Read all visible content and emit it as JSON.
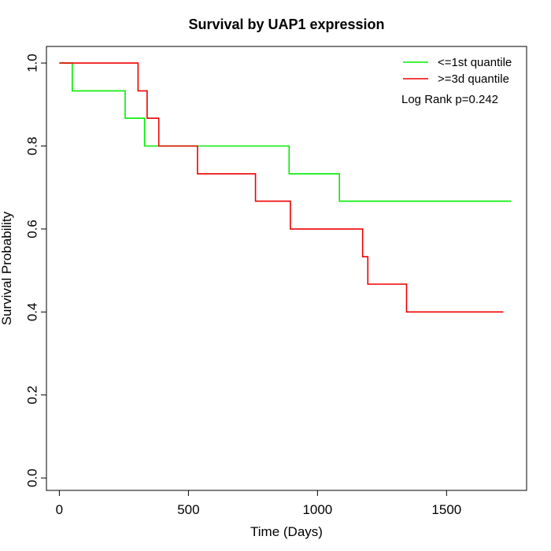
{
  "chart_data": {
    "type": "line",
    "title": "Survival by UAP1 expression",
    "xlabel": "Time (Days)",
    "ylabel": "Survival Probability",
    "xlim": [
      -50,
      1810
    ],
    "ylim": [
      -0.03,
      1.04
    ],
    "x_ticks": [
      0,
      500,
      1000,
      1500
    ],
    "y_ticks": [
      0.0,
      0.2,
      0.4,
      0.6,
      0.8,
      1.0
    ],
    "x_tick_labels": [
      "0",
      "500",
      "1000",
      "1500"
    ],
    "y_tick_labels": [
      "0.0",
      "0.2",
      "0.4",
      "0.6",
      "0.8",
      "1.0"
    ],
    "grid": false,
    "legend_position": "top-right",
    "annotation": "Log Rank p=0.242",
    "series": [
      {
        "name": "<=1st quantile",
        "color": "#00ee00",
        "step_x": [
          0,
          50,
          50,
          255,
          255,
          330,
          330,
          890,
          890,
          1085,
          1085,
          1750
        ],
        "step_y": [
          1.0,
          1.0,
          0.933,
          0.933,
          0.867,
          0.867,
          0.8,
          0.8,
          0.733,
          0.733,
          0.667,
          0.667
        ]
      },
      {
        "name": ">=3d quantile",
        "color": "#ee0000",
        "step_x": [
          0,
          305,
          305,
          340,
          340,
          385,
          385,
          535,
          535,
          760,
          760,
          895,
          895,
          1175,
          1175,
          1195,
          1195,
          1345,
          1345,
          1720
        ],
        "step_y": [
          1.0,
          1.0,
          0.933,
          0.933,
          0.867,
          0.867,
          0.8,
          0.8,
          0.733,
          0.733,
          0.667,
          0.667,
          0.6,
          0.6,
          0.533,
          0.533,
          0.467,
          0.467,
          0.4,
          0.4
        ]
      }
    ]
  }
}
